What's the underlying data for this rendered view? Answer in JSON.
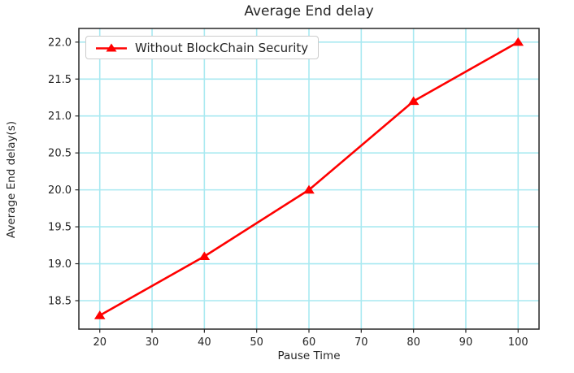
{
  "chart_data": {
    "type": "line",
    "title": "Average End delay",
    "xlabel": "Pause Time",
    "ylabel": "Average End delay(s)",
    "x": [
      20,
      40,
      60,
      80,
      100
    ],
    "series": [
      {
        "name": "Without BlockChain Security",
        "values": [
          18.3,
          19.1,
          20.0,
          21.2,
          22.0
        ],
        "color": "#ff0000",
        "marker": "triangle-up"
      }
    ],
    "xlim": [
      16,
      104
    ],
    "ylim": [
      18.115,
      22.185
    ],
    "xticks": [
      20,
      30,
      40,
      50,
      60,
      70,
      80,
      90,
      100
    ],
    "yticks": [
      18.5,
      19.0,
      19.5,
      20.0,
      20.5,
      21.0,
      21.5,
      22.0
    ],
    "grid": true,
    "grid_color": "#a9e9f1",
    "axis_color": "#262626",
    "legend_position": "upper-left"
  }
}
